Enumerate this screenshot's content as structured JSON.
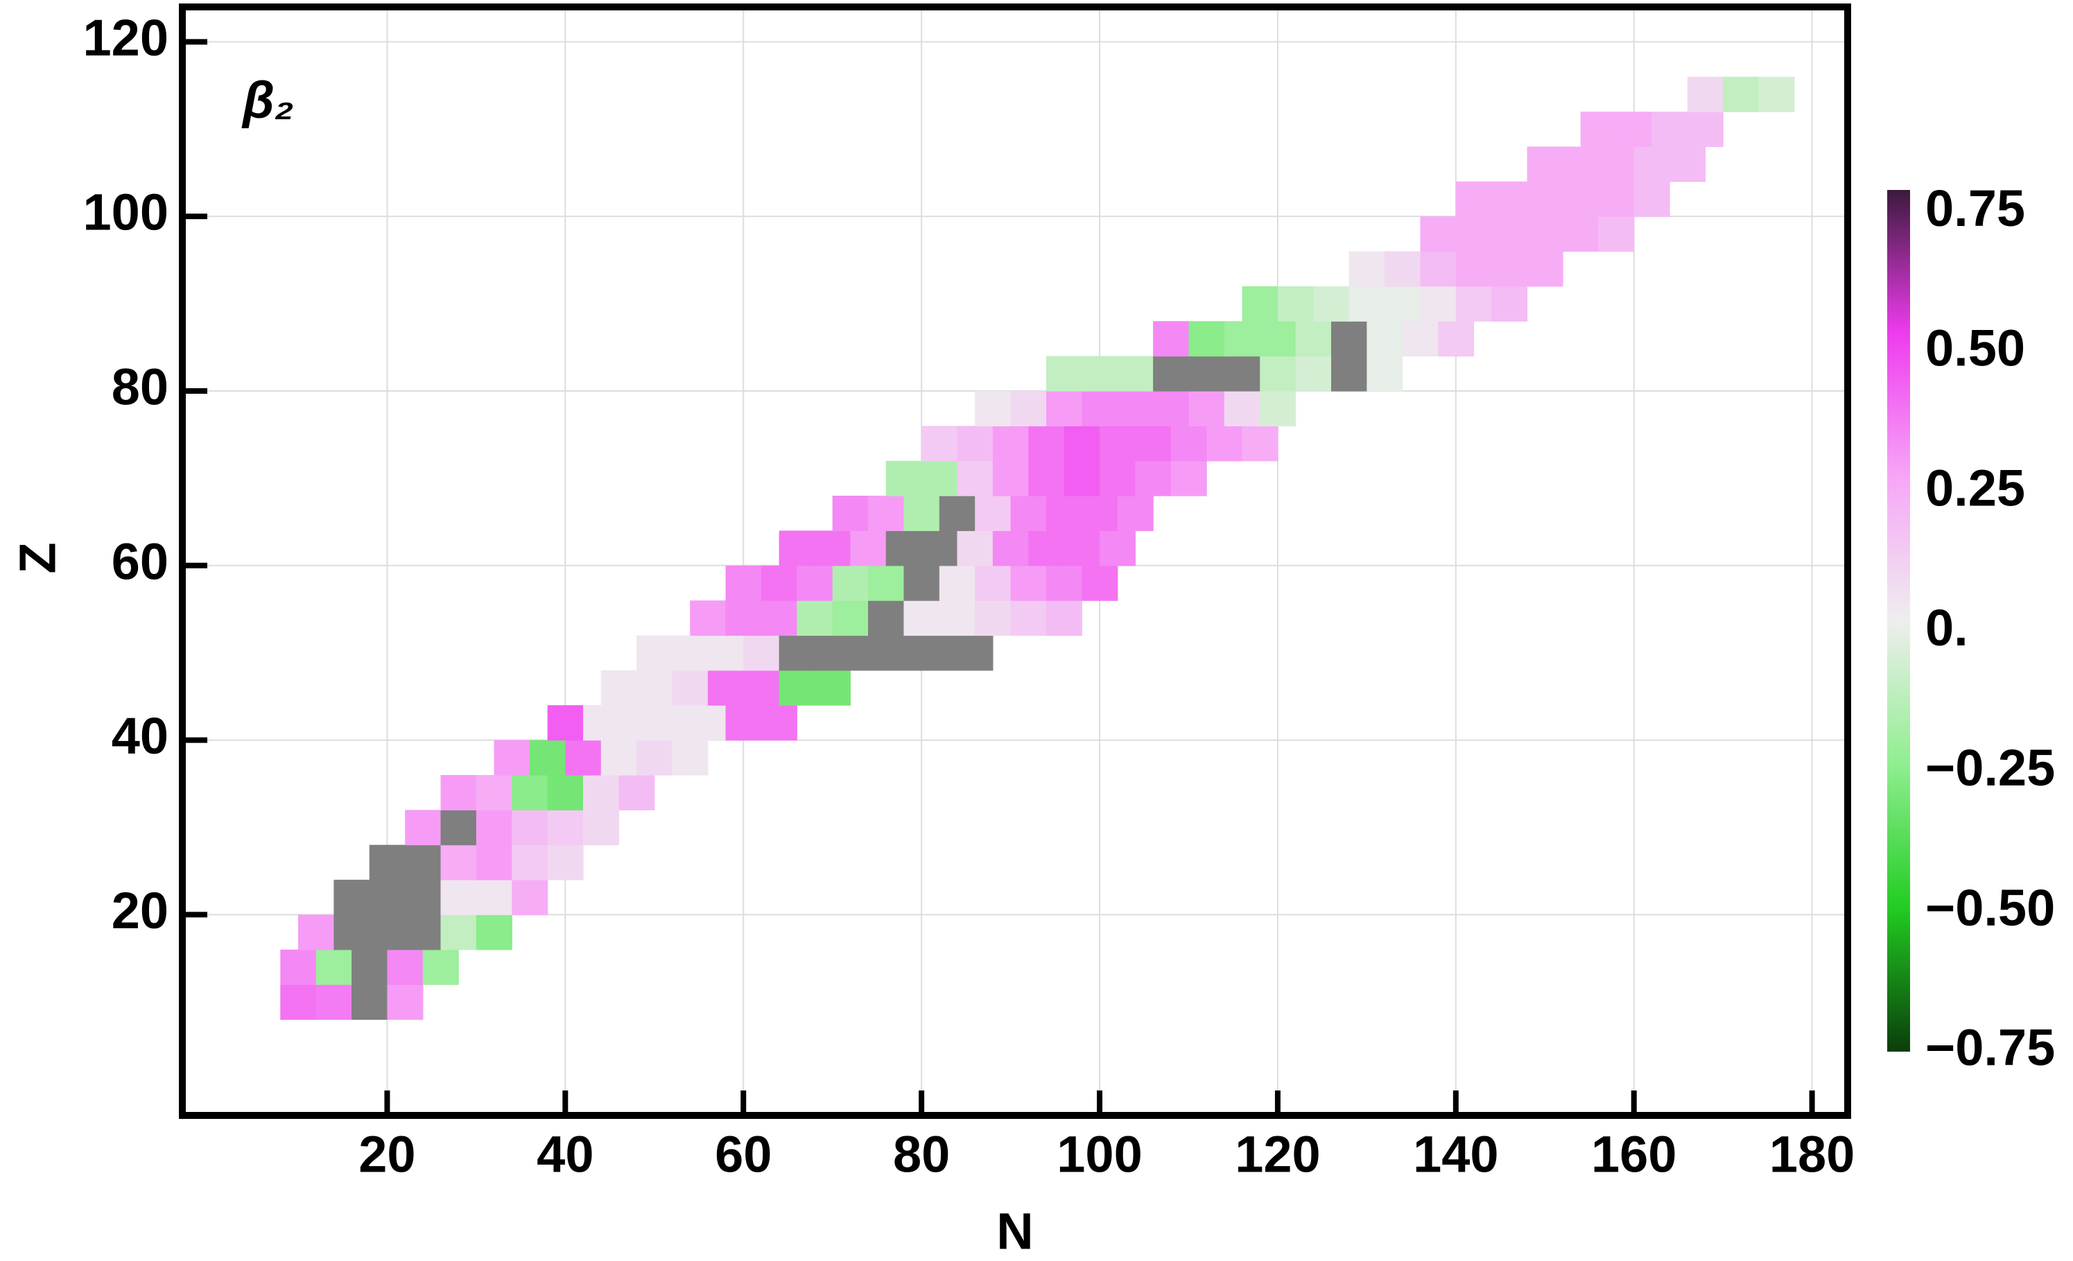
{
  "chart_data": {
    "type": "heatmap",
    "title": "β₂",
    "title_color": "#ff0000",
    "xlabel": "N",
    "ylabel": "Z",
    "xlim": [
      -3,
      184
    ],
    "ylim": [
      -3,
      124
    ],
    "xticks": [
      20,
      40,
      60,
      80,
      100,
      120,
      140,
      160,
      180
    ],
    "yticks": [
      20,
      40,
      60,
      80,
      100,
      120
    ],
    "grid": true,
    "clim": [
      -0.75,
      0.79
    ],
    "cticks": [
      0.75,
      {
        "value": 0.5,
        "label": "0.50"
      },
      0.25,
      {
        "value": 0,
        "label": "0."
      },
      {
        "value": -0.25,
        "label": "−0.25"
      },
      {
        "value": -0.5,
        "label": "−0.50"
      },
      {
        "value": -0.75,
        "label": "−0.75"
      }
    ],
    "colormap": [
      "#0b3d0b",
      "#22cc22",
      "#90ee90",
      "#eeeeee",
      "#f7a6f7",
      "#ee3cee",
      "#3c1a3c"
    ],
    "null_color": "#7f7f7f",
    "rows": [
      {
        "z": 10,
        "n": 10,
        "values": [
          0.4,
          0.38,
          null,
          0.3
        ]
      },
      {
        "z": 14,
        "n": 10,
        "values": [
          0.35,
          -0.2,
          null,
          0.35,
          -0.2
        ]
      },
      {
        "z": 18,
        "n": 12,
        "values": [
          0.3,
          null,
          null,
          null,
          -0.1,
          -0.25
        ]
      },
      {
        "z": 22,
        "n": 16,
        "values": [
          null,
          null,
          null,
          0.05,
          0.05,
          0.25
        ]
      },
      {
        "z": 26,
        "n": 20,
        "values": [
          null,
          null,
          0.25,
          0.3,
          0.15,
          0.1
        ]
      },
      {
        "z": 30,
        "n": 24,
        "values": [
          0.3,
          null,
          0.3,
          0.2,
          0.15,
          0.1
        ]
      },
      {
        "z": 34,
        "n": 28,
        "values": [
          0.3,
          0.25,
          -0.25,
          -0.3,
          0.1,
          0.2
        ]
      },
      {
        "z": 38,
        "n": 34,
        "values": [
          0.3,
          -0.3,
          0.4,
          0.05,
          0.1,
          0.05
        ]
      },
      {
        "z": 42,
        "n": 40,
        "values": [
          0.45,
          0.05,
          0.05,
          0.05,
          0.05,
          0.4,
          0.4
        ]
      },
      {
        "z": 46,
        "n": 46,
        "values": [
          0.05,
          0.05,
          0.1,
          0.4,
          0.4,
          -0.3,
          -0.3
        ]
      },
      {
        "z": 50,
        "n": 50,
        "values": [
          0.05,
          0.05,
          0.05,
          0.1,
          null,
          null,
          null,
          null,
          null,
          null
        ]
      },
      {
        "z": 54,
        "n": 56,
        "values": [
          0.3,
          0.35,
          0.35,
          -0.15,
          -0.2,
          null,
          0.05,
          0.05,
          0.1,
          0.15,
          0.2
        ]
      },
      {
        "z": 58,
        "n": 60,
        "values": [
          0.35,
          0.4,
          0.35,
          -0.15,
          -0.2,
          null,
          0.05,
          0.15,
          0.3,
          0.35,
          0.4
        ]
      },
      {
        "z": 62,
        "n": 66,
        "values": [
          0.4,
          0.4,
          0.3,
          null,
          null,
          0.1,
          0.35,
          0.4,
          0.4,
          0.35
        ]
      },
      {
        "z": 66,
        "n": 72,
        "values": [
          0.35,
          0.3,
          -0.15,
          null,
          0.15,
          0.35,
          0.4,
          0.4,
          0.35
        ]
      },
      {
        "z": 70,
        "n": 78,
        "values": [
          -0.15,
          -0.15,
          0.15,
          0.3,
          0.4,
          0.45,
          0.4,
          0.35,
          0.3
        ]
      },
      {
        "z": 74,
        "n": 82,
        "values": [
          0.15,
          0.2,
          0.3,
          0.4,
          0.45,
          0.4,
          0.4,
          0.35,
          0.3,
          0.25
        ]
      },
      {
        "z": 78,
        "n": 88,
        "values": [
          0.05,
          0.1,
          0.3,
          0.35,
          0.35,
          0.35,
          0.3,
          0.1,
          -0.05
        ]
      },
      {
        "z": 82,
        "n": 96,
        "values": [
          -0.1,
          -0.1,
          -0.1,
          null,
          null,
          null,
          -0.1,
          -0.05,
          null,
          0
        ]
      },
      {
        "z": 86,
        "n": 108,
        "values": [
          0.35,
          -0.25,
          -0.2,
          -0.2,
          -0.1,
          null,
          0,
          0.05,
          0.15
        ]
      },
      {
        "z": 90,
        "n": 118,
        "values": [
          -0.2,
          -0.1,
          -0.05,
          0,
          0,
          0.05,
          0.15,
          0.2
        ]
      },
      {
        "z": 94,
        "n": 130,
        "values": [
          0.05,
          0.1,
          0.2,
          0.25,
          0.25,
          0.25
        ]
      },
      {
        "z": 98,
        "n": 138,
        "values": [
          0.25,
          0.25,
          0.25,
          0.25,
          0.25,
          0.2
        ]
      },
      {
        "z": 102,
        "n": 142,
        "values": [
          0.25,
          0.25,
          0.25,
          0.25,
          0.25,
          0.2
        ]
      },
      {
        "z": 106,
        "n": 150,
        "values": [
          0.25,
          0.25,
          0.25,
          0.2,
          0.2
        ]
      },
      {
        "z": 110,
        "n": 156,
        "values": [
          0.25,
          0.25,
          0.2,
          0.2
        ]
      },
      {
        "z": 114,
        "n": 168,
        "values": [
          0.1,
          -0.1,
          -0.05
        ]
      }
    ]
  }
}
